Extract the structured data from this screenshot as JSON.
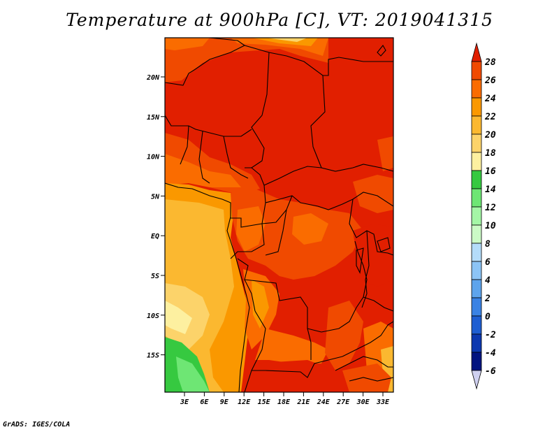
{
  "title": "Temperature at 900hPa [C], VT: 2019041315",
  "credit": "GrADS: IGES/COLA",
  "lat_ticks": [
    "20N",
    "15N",
    "10N",
    "5N",
    "EQ",
    "5S",
    "10S",
    "15S"
  ],
  "lon_ticks": [
    "3E",
    "6E",
    "9E",
    "12E",
    "15E",
    "18E",
    "21E",
    "24E",
    "27E",
    "30E",
    "33E"
  ],
  "colorbar": {
    "labels": [
      "28",
      "26",
      "24",
      "22",
      "20",
      "18",
      "16",
      "14",
      "12",
      "10",
      "8",
      "6",
      "4",
      "2",
      "0",
      "-2",
      "-4",
      "-6"
    ],
    "colors": [
      "#e11f00",
      "#f04a00",
      "#fa6c00",
      "#fa9800",
      "#fbb830",
      "#fcd36a",
      "#fdf0a0",
      "#36c940",
      "#6ee674",
      "#a4f6a6",
      "#cbfac6",
      "#b4dcfa",
      "#8cc4f6",
      "#5ea4ec",
      "#3a82e4",
      "#1e5ed2",
      "#0c38b0",
      "#021480"
    ],
    "below_color": "#cfd0f0"
  }
}
